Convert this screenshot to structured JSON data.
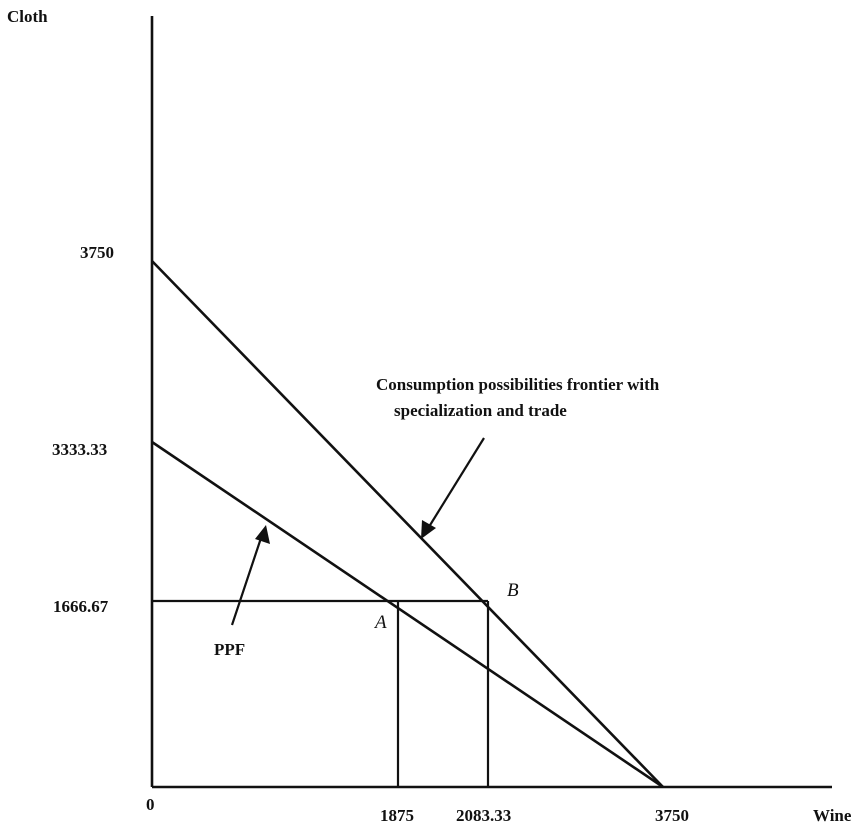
{
  "chart_data": {
    "type": "line",
    "xlabel": "Wine",
    "ylabel": "Cloth",
    "origin_label": "0",
    "x_ticks": [
      "1875",
      "2083.33",
      "3750"
    ],
    "y_ticks": [
      "3750",
      "3333.33",
      "1666.67"
    ],
    "xlim": [
      0,
      5000
    ],
    "ylim": [
      0,
      5000
    ],
    "grid": false,
    "series": [
      {
        "name": "Consumption possibilities frontier with specialization and trade",
        "x": [
          0,
          3750
        ],
        "y": [
          3750,
          0
        ]
      },
      {
        "name": "PPF",
        "x": [
          0,
          3750
        ],
        "y": [
          3333.33,
          0
        ]
      }
    ],
    "points": [
      {
        "label": "A",
        "x": 1875,
        "y": 1666.67
      },
      {
        "label": "B",
        "x": 2083.33,
        "y": 1666.67
      }
    ],
    "annotations": {
      "cpf_line1": "Consumption possibilities frontier with",
      "cpf_line2": "specialization and trade",
      "ppf": "PPF"
    }
  }
}
